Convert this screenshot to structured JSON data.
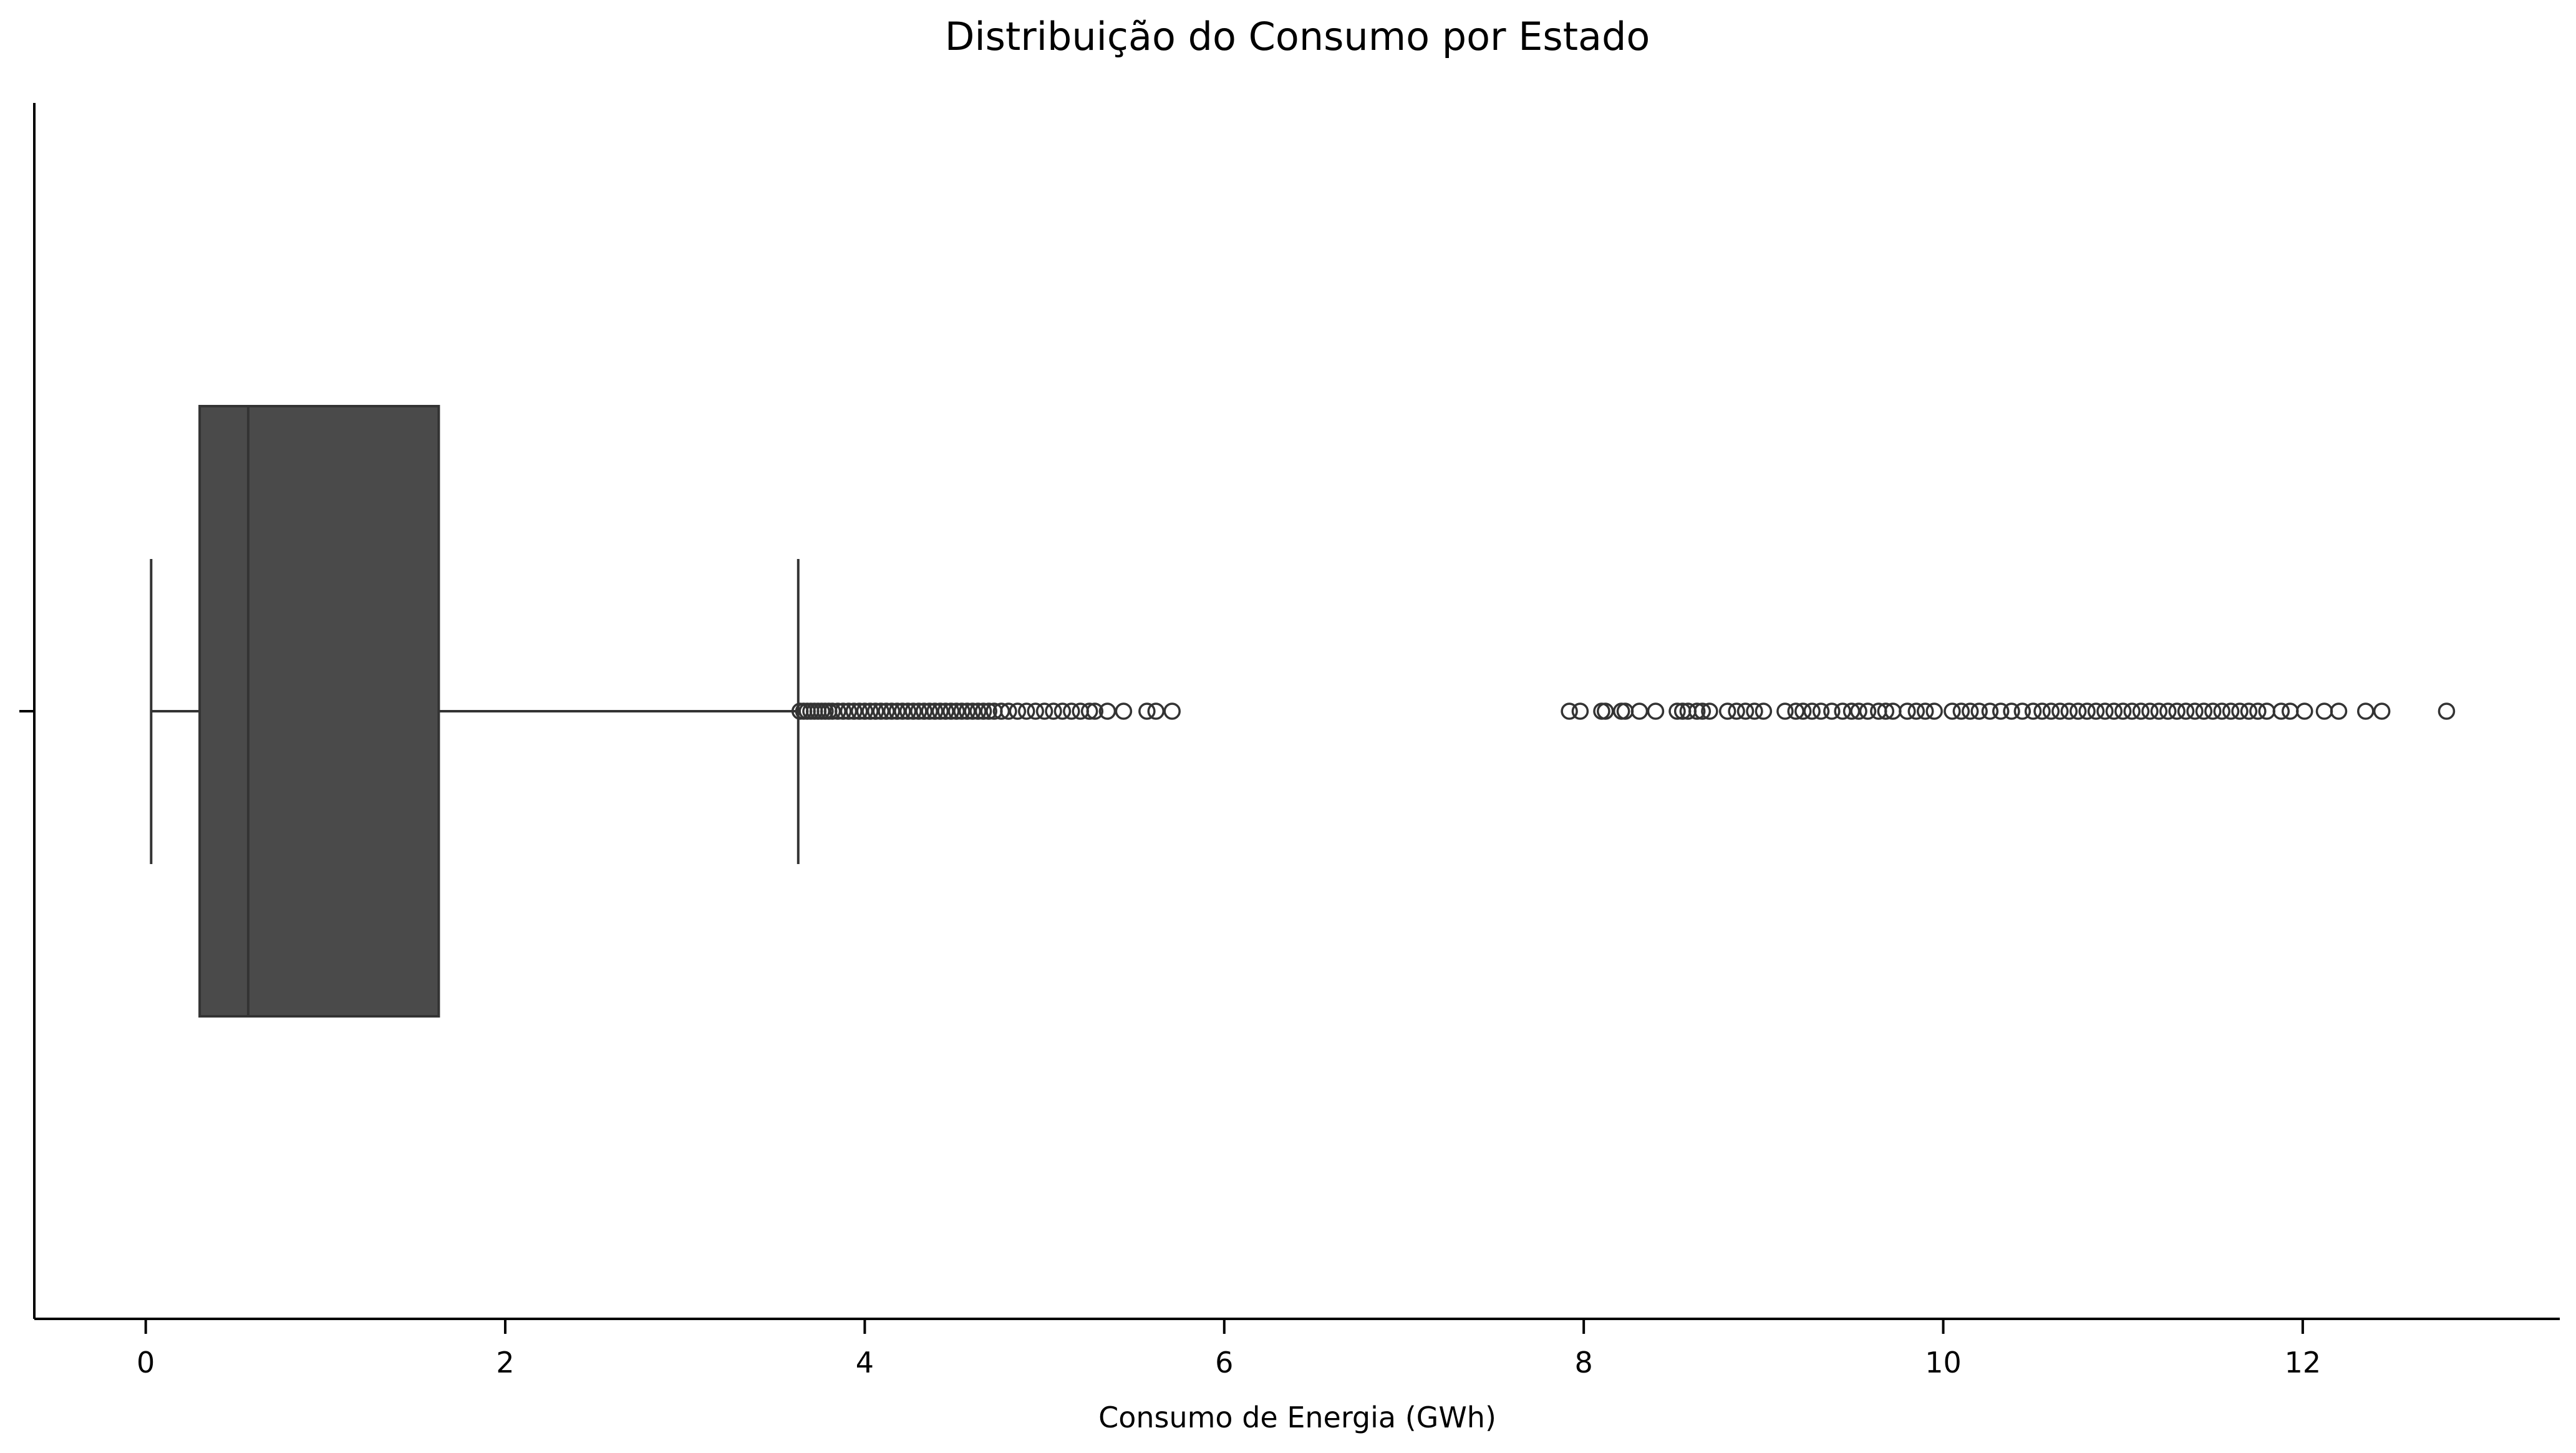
{
  "chart_data": {
    "type": "boxplot",
    "title": "Distribuição do Consumo por Estado",
    "xlabel": "Consumo de Energia (GWh)",
    "ylabel": "",
    "orientation": "horizontal",
    "xlim": [
      -0.62,
      13.43
    ],
    "x_ticks": [
      0,
      2,
      4,
      6,
      8,
      10,
      12
    ],
    "x_tick_labels": [
      "0",
      "2",
      "4",
      "6",
      "8",
      "10",
      "12"
    ],
    "grid": false,
    "box": {
      "whisker_low": 0.03,
      "q1": 0.3,
      "median": 0.57,
      "q3": 1.63,
      "whisker_high": 3.63,
      "color": "#4a4a4a",
      "edge_color": "#333333"
    },
    "outliers": [
      3.64,
      3.66,
      3.68,
      3.7,
      3.72,
      3.74,
      3.76,
      3.78,
      3.8,
      3.82,
      3.85,
      3.88,
      3.91,
      3.94,
      3.97,
      4.0,
      4.03,
      4.06,
      4.09,
      4.12,
      4.15,
      4.18,
      4.21,
      4.24,
      4.27,
      4.3,
      4.33,
      4.36,
      4.39,
      4.42,
      4.45,
      4.48,
      4.51,
      4.54,
      4.57,
      4.6,
      4.63,
      4.66,
      4.69,
      4.72,
      4.76,
      4.8,
      4.85,
      4.9,
      4.95,
      5.0,
      5.05,
      5.1,
      5.15,
      5.2,
      5.25,
      5.28,
      5.35,
      5.44,
      5.57,
      5.62,
      5.71,
      7.92,
      7.98,
      8.1,
      8.12,
      8.21,
      8.23,
      8.31,
      8.4,
      8.52,
      8.55,
      8.58,
      8.63,
      8.66,
      8.7,
      8.8,
      8.85,
      8.9,
      8.95,
      9.0,
      9.12,
      9.18,
      9.22,
      9.27,
      9.32,
      9.38,
      9.44,
      9.49,
      9.53,
      9.58,
      9.64,
      9.68,
      9.72,
      9.8,
      9.85,
      9.9,
      9.95,
      10.05,
      10.1,
      10.15,
      10.2,
      10.26,
      10.32,
      10.38,
      10.44,
      10.5,
      10.55,
      10.6,
      10.65,
      10.7,
      10.75,
      10.8,
      10.85,
      10.9,
      10.95,
      11.0,
      11.05,
      11.1,
      11.15,
      11.2,
      11.25,
      11.3,
      11.35,
      11.4,
      11.45,
      11.5,
      11.55,
      11.6,
      11.65,
      11.7,
      11.75,
      11.8,
      11.88,
      11.93,
      12.01,
      12.12,
      12.2,
      12.35,
      12.44,
      12.8
    ]
  }
}
